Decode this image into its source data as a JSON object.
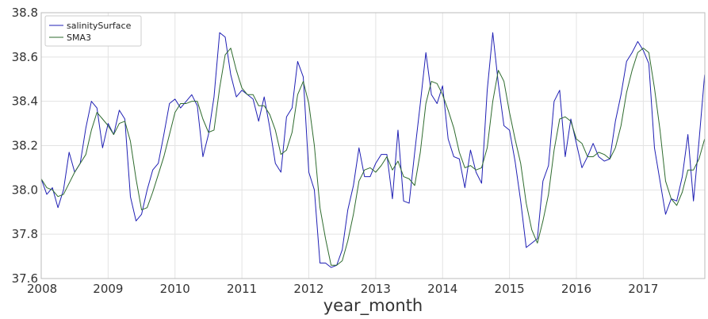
{
  "chart_data": {
    "type": "line",
    "xlabel": "year_month",
    "ylabel": "",
    "title": "",
    "xlim": [
      2008.0,
      2017.92
    ],
    "ylim": [
      37.6,
      38.8
    ],
    "xticks": [
      2008,
      2009,
      2010,
      2011,
      2012,
      2013,
      2014,
      2015,
      2016,
      2017
    ],
    "yticks": [
      37.6,
      37.8,
      38.0,
      38.2,
      38.4,
      38.6,
      38.8
    ],
    "grid": true,
    "legend_position": "top-left",
    "x": [
      2008.0,
      2008.083,
      2008.167,
      2008.25,
      2008.333,
      2008.417,
      2008.5,
      2008.583,
      2008.667,
      2008.75,
      2008.833,
      2008.917,
      2009.0,
      2009.083,
      2009.167,
      2009.25,
      2009.333,
      2009.417,
      2009.5,
      2009.583,
      2009.667,
      2009.75,
      2009.833,
      2009.917,
      2010.0,
      2010.083,
      2010.167,
      2010.25,
      2010.333,
      2010.417,
      2010.5,
      2010.583,
      2010.667,
      2010.75,
      2010.833,
      2010.917,
      2011.0,
      2011.083,
      2011.167,
      2011.25,
      2011.333,
      2011.417,
      2011.5,
      2011.583,
      2011.667,
      2011.75,
      2011.833,
      2011.917,
      2012.0,
      2012.083,
      2012.167,
      2012.25,
      2012.333,
      2012.417,
      2012.5,
      2012.583,
      2012.667,
      2012.75,
      2012.833,
      2012.917,
      2013.0,
      2013.083,
      2013.167,
      2013.25,
      2013.333,
      2013.417,
      2013.5,
      2013.583,
      2013.667,
      2013.75,
      2013.833,
      2013.917,
      2014.0,
      2014.083,
      2014.167,
      2014.25,
      2014.333,
      2014.417,
      2014.5,
      2014.583,
      2014.667,
      2014.75,
      2014.833,
      2014.917,
      2015.0,
      2015.083,
      2015.167,
      2015.25,
      2015.333,
      2015.417,
      2015.5,
      2015.583,
      2015.667,
      2015.75,
      2015.833,
      2015.917,
      2016.0,
      2016.083,
      2016.167,
      2016.25,
      2016.333,
      2016.417,
      2016.5,
      2016.583,
      2016.667,
      2016.75,
      2016.833,
      2016.917,
      2017.0,
      2017.083,
      2017.167,
      2017.25,
      2017.333,
      2017.417,
      2017.5,
      2017.583,
      2017.667,
      2017.75,
      2017.833,
      2017.917
    ],
    "series": [
      {
        "name": "salinitySurface",
        "color": "#1f1fb4",
        "values": [
          38.05,
          37.98,
          38.01,
          37.92,
          38.0,
          38.17,
          38.08,
          38.12,
          38.28,
          38.4,
          38.37,
          38.19,
          38.3,
          38.25,
          38.36,
          38.32,
          37.97,
          37.86,
          37.89,
          38.0,
          38.09,
          38.12,
          38.25,
          38.39,
          38.41,
          38.37,
          38.4,
          38.43,
          38.38,
          38.15,
          38.25,
          38.42,
          38.71,
          38.69,
          38.52,
          38.42,
          38.45,
          38.43,
          38.41,
          38.31,
          38.42,
          38.28,
          38.12,
          38.08,
          38.33,
          38.37,
          38.58,
          38.51,
          38.08,
          38.0,
          37.67,
          37.67,
          37.65,
          37.66,
          37.73,
          37.91,
          38.02,
          38.19,
          38.06,
          38.06,
          38.12,
          38.16,
          38.16,
          37.96,
          38.27,
          37.95,
          37.94,
          38.17,
          38.39,
          38.62,
          38.43,
          38.39,
          38.47,
          38.23,
          38.15,
          38.14,
          38.01,
          38.18,
          38.08,
          38.03,
          38.45,
          38.71,
          38.48,
          38.29,
          38.27,
          38.13,
          37.95,
          37.74,
          37.76,
          37.78,
          38.04,
          38.11,
          38.4,
          38.45,
          38.15,
          38.32,
          38.21,
          38.1,
          38.15,
          38.21,
          38.15,
          38.13,
          38.14,
          38.31,
          38.43,
          38.58,
          38.62,
          38.67,
          38.63,
          38.57,
          38.19,
          38.04,
          37.89,
          37.96,
          37.95,
          38.06,
          38.25,
          37.95,
          38.22,
          38.52
        ]
      },
      {
        "name": "SMA3",
        "color": "#2e6b2e",
        "values": [
          38.05,
          38.01,
          38.0,
          37.97,
          37.98,
          38.03,
          38.08,
          38.12,
          38.16,
          38.27,
          38.35,
          38.32,
          38.29,
          38.25,
          38.3,
          38.31,
          38.22,
          38.05,
          37.91,
          37.92,
          37.99,
          38.07,
          38.15,
          38.25,
          38.35,
          38.39,
          38.39,
          38.4,
          38.4,
          38.32,
          38.26,
          38.27,
          38.46,
          38.61,
          38.64,
          38.54,
          38.46,
          38.43,
          38.43,
          38.38,
          38.38,
          38.34,
          38.27,
          38.16,
          38.18,
          38.26,
          38.43,
          38.49,
          38.39,
          38.2,
          37.92,
          37.78,
          37.66,
          37.66,
          37.68,
          37.77,
          37.89,
          38.04,
          38.09,
          38.1,
          38.08,
          38.11,
          38.15,
          38.09,
          38.13,
          38.06,
          38.05,
          38.02,
          38.17,
          38.39,
          38.49,
          38.48,
          38.43,
          38.36,
          38.28,
          38.17,
          38.1,
          38.11,
          38.09,
          38.1,
          38.19,
          38.4,
          38.54,
          38.49,
          38.35,
          38.23,
          38.12,
          37.94,
          37.82,
          37.76,
          37.86,
          37.98,
          38.18,
          38.32,
          38.33,
          38.31,
          38.23,
          38.21,
          38.15,
          38.15,
          38.17,
          38.16,
          38.14,
          38.19,
          38.29,
          38.44,
          38.54,
          38.62,
          38.64,
          38.62,
          38.46,
          38.27,
          38.04,
          37.96,
          37.93,
          37.99,
          38.09,
          38.09,
          38.14,
          38.23
        ]
      }
    ]
  }
}
